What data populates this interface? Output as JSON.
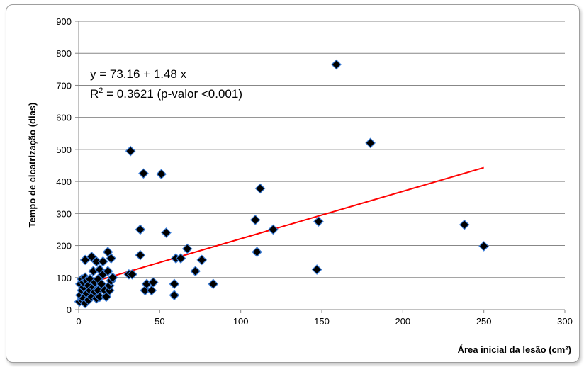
{
  "chart_data": {
    "type": "scatter",
    "xlabel": "Área inicial da lesão (cm²)",
    "ylabel": "Tempo de cicatrização (dias)",
    "xlim": [
      0,
      300
    ],
    "ylim": [
      0,
      900
    ],
    "xticks": [
      0,
      50,
      100,
      150,
      200,
      250,
      300
    ],
    "yticks": [
      0,
      100,
      200,
      300,
      400,
      500,
      600,
      700,
      800,
      900
    ],
    "grid": "horizontal",
    "marker": "diamond",
    "marker_color": "#000000",
    "marker_edge_color": "#3b7dd8",
    "trendline_color": "#ff0000",
    "annotation": {
      "equation": "y = 73.16 + 1.48 x",
      "r2_label": "R",
      "r2_sup": "2",
      "r2_text": " = 0.3621 (p-valor <0.001)"
    },
    "trendline": {
      "intercept": 73.16,
      "slope": 1.48,
      "x_range": [
        0,
        250
      ]
    },
    "points": [
      [
        0.5,
        25
      ],
      [
        1,
        45
      ],
      [
        1,
        80
      ],
      [
        2,
        30
      ],
      [
        2,
        60
      ],
      [
        2,
        95
      ],
      [
        3,
        35
      ],
      [
        3,
        70
      ],
      [
        3,
        85
      ],
      [
        4,
        155
      ],
      [
        4,
        20
      ],
      [
        4,
        100
      ],
      [
        5,
        50
      ],
      [
        5,
        90
      ],
      [
        6,
        30
      ],
      [
        6,
        75
      ],
      [
        7,
        60
      ],
      [
        7,
        95
      ],
      [
        8,
        40
      ],
      [
        8,
        165
      ],
      [
        9,
        70
      ],
      [
        9,
        120
      ],
      [
        10,
        55
      ],
      [
        10,
        85
      ],
      [
        11,
        35
      ],
      [
        11,
        150
      ],
      [
        12,
        95
      ],
      [
        12,
        60
      ],
      [
        13,
        40
      ],
      [
        13,
        125
      ],
      [
        14,
        80
      ],
      [
        15,
        110
      ],
      [
        15,
        150
      ],
      [
        16,
        60
      ],
      [
        17,
        40
      ],
      [
        18,
        120
      ],
      [
        18,
        180
      ],
      [
        19,
        60
      ],
      [
        19,
        75
      ],
      [
        20,
        160
      ],
      [
        20,
        90
      ],
      [
        21,
        100
      ],
      [
        31,
        110
      ],
      [
        32,
        495
      ],
      [
        33,
        110
      ],
      [
        38,
        250
      ],
      [
        38,
        170
      ],
      [
        40,
        425
      ],
      [
        41,
        60
      ],
      [
        42,
        80
      ],
      [
        45,
        60
      ],
      [
        46,
        85
      ],
      [
        51,
        423
      ],
      [
        54,
        240
      ],
      [
        59,
        80
      ],
      [
        59,
        45
      ],
      [
        60,
        160
      ],
      [
        63,
        160
      ],
      [
        67,
        190
      ],
      [
        72,
        120
      ],
      [
        76,
        155
      ],
      [
        83,
        80
      ],
      [
        109,
        280
      ],
      [
        110,
        180
      ],
      [
        112,
        378
      ],
      [
        120,
        250
      ],
      [
        147,
        125
      ],
      [
        148,
        275
      ],
      [
        159,
        765
      ],
      [
        180,
        520
      ],
      [
        238,
        265
      ],
      [
        250,
        198
      ]
    ]
  }
}
